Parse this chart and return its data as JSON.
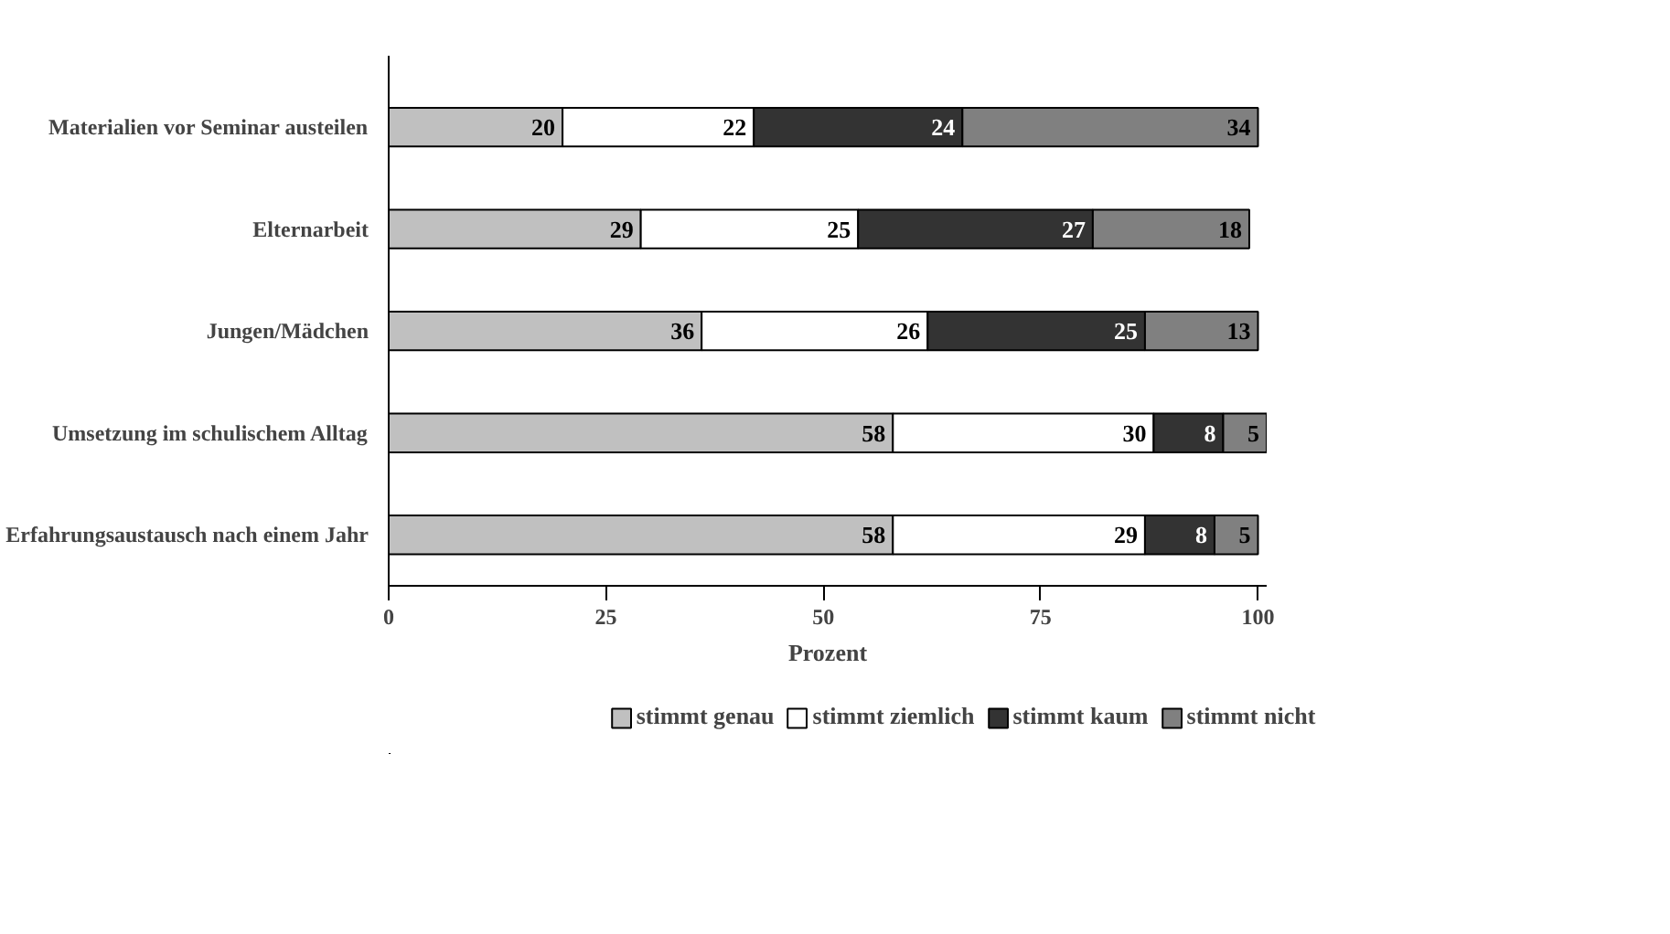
{
  "chart_data": {
    "type": "bar",
    "orientation": "horizontal",
    "stacked": true,
    "data_labels": true,
    "categories": [
      "Materialien vor Seminar austeilen",
      "Elternarbeit",
      "Jungen/Mädchen",
      "Umsetzung im schulischem Alltag",
      "Erfahrungsaustausch nach einem Jahr"
    ],
    "series": [
      {
        "name": "stimmt genau",
        "color": "#c0c0c0",
        "values": [
          20,
          29,
          36,
          58,
          58
        ]
      },
      {
        "name": "stimmt ziemlich",
        "color": "#ffffff",
        "values": [
          22,
          25,
          26,
          30,
          29
        ]
      },
      {
        "name": "stimmt kaum",
        "color": "#333333",
        "values": [
          24,
          27,
          25,
          8,
          8
        ]
      },
      {
        "name": "stimmt nicht",
        "color": "#808080",
        "values": [
          34,
          18,
          13,
          5,
          5
        ]
      }
    ],
    "xlabel": "Prozent",
    "xlim": [
      0,
      101
    ],
    "xticks": [
      0,
      25,
      50,
      75,
      100
    ],
    "grid": false,
    "legend": "bottom"
  }
}
